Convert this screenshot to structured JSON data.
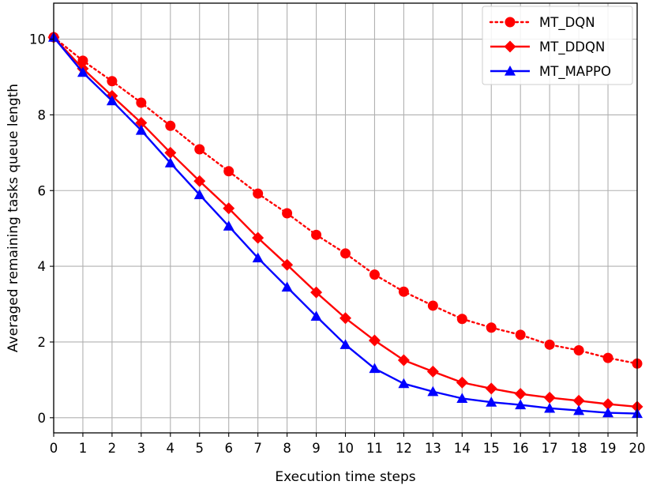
{
  "chart_data": {
    "type": "line",
    "title": "",
    "xlabel": "Execution time steps",
    "ylabel": "Averaged remaining tasks queue length",
    "xlim": [
      0,
      20
    ],
    "ylim": [
      -0.4,
      10.95
    ],
    "x_ticks": [
      0,
      1,
      2,
      3,
      4,
      5,
      6,
      7,
      8,
      9,
      10,
      11,
      12,
      13,
      14,
      15,
      16,
      17,
      18,
      19,
      20
    ],
    "y_ticks": [
      0,
      2,
      4,
      6,
      8,
      10
    ],
    "grid": true,
    "legend_position": "top-right",
    "x": [
      0,
      1,
      2,
      3,
      4,
      5,
      6,
      7,
      8,
      9,
      10,
      11,
      12,
      13,
      14,
      15,
      16,
      17,
      18,
      19,
      20
    ],
    "series": [
      {
        "name": "MT_DQN",
        "color": "#ff0000",
        "linestyle": "dotted",
        "marker": "circle",
        "values": [
          10.05,
          9.43,
          8.89,
          8.32,
          7.71,
          7.09,
          6.51,
          5.92,
          5.4,
          4.83,
          4.34,
          3.78,
          3.33,
          2.96,
          2.61,
          2.38,
          2.19,
          1.93,
          1.78,
          1.58,
          1.43
        ]
      },
      {
        "name": "MT_DDQN",
        "color": "#ff0000",
        "linestyle": "solid",
        "marker": "diamond",
        "values": [
          10.05,
          9.22,
          8.5,
          7.79,
          7.0,
          6.25,
          5.53,
          4.75,
          4.04,
          3.31,
          2.63,
          2.04,
          1.52,
          1.22,
          0.93,
          0.77,
          0.63,
          0.53,
          0.45,
          0.36,
          0.29
        ]
      },
      {
        "name": "MT_MAPPO",
        "color": "#0000ff",
        "linestyle": "solid",
        "marker": "triangle",
        "values": [
          10.05,
          9.12,
          8.37,
          7.59,
          6.73,
          5.89,
          5.06,
          4.22,
          3.45,
          2.68,
          1.93,
          1.3,
          0.9,
          0.69,
          0.51,
          0.41,
          0.34,
          0.25,
          0.19,
          0.13,
          0.11
        ]
      }
    ]
  }
}
